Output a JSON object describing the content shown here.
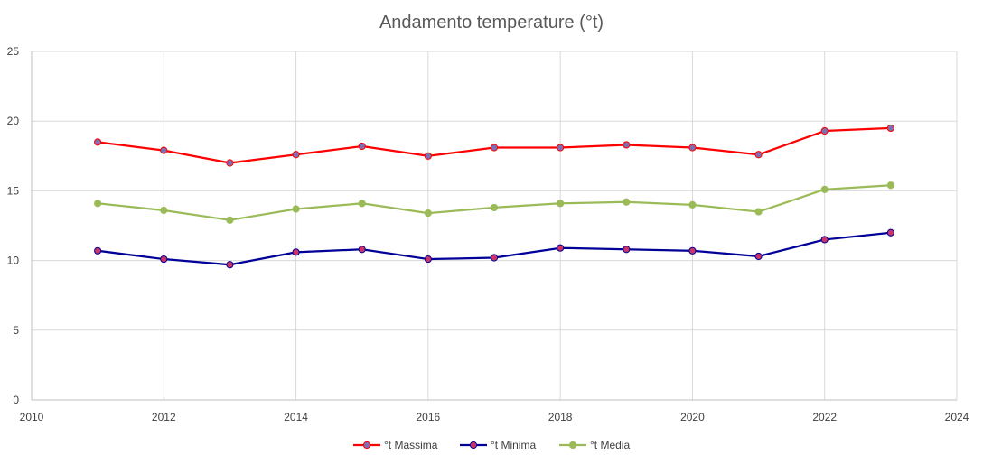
{
  "chart_data": {
    "type": "line",
    "title": "Andamento temperature (°t)",
    "xlabel": "",
    "ylabel": "",
    "xlim": [
      2010,
      2024
    ],
    "ylim": [
      0,
      25
    ],
    "xticks": [
      2010,
      2012,
      2014,
      2016,
      2018,
      2020,
      2022,
      2024
    ],
    "yticks": [
      0,
      5,
      10,
      15,
      20,
      25
    ],
    "grid": true,
    "legend": "bottom",
    "x": [
      2011,
      2012,
      2013,
      2014,
      2015,
      2016,
      2017,
      2018,
      2019,
      2020,
      2021,
      2022,
      2023
    ],
    "series": [
      {
        "name": "°t Massima",
        "color": "#ff0000",
        "marker_fill": "#7d6fb3",
        "values": [
          18.5,
          17.9,
          17.0,
          17.6,
          18.2,
          17.5,
          18.1,
          18.1,
          18.3,
          18.1,
          17.6,
          19.3,
          19.5
        ]
      },
      {
        "name": "°t Minima",
        "color": "#000099",
        "marker_fill": "#cc3366",
        "values": [
          10.7,
          10.1,
          9.7,
          10.6,
          10.8,
          10.1,
          10.2,
          10.9,
          10.8,
          10.7,
          10.3,
          11.5,
          12.0
        ]
      },
      {
        "name": "°t Media",
        "color": "#9bbb59",
        "marker_fill": "#9bbb59",
        "values": [
          14.1,
          13.6,
          12.9,
          13.7,
          14.1,
          13.4,
          13.8,
          14.1,
          14.2,
          14.0,
          13.5,
          15.1,
          15.4
        ]
      }
    ]
  }
}
